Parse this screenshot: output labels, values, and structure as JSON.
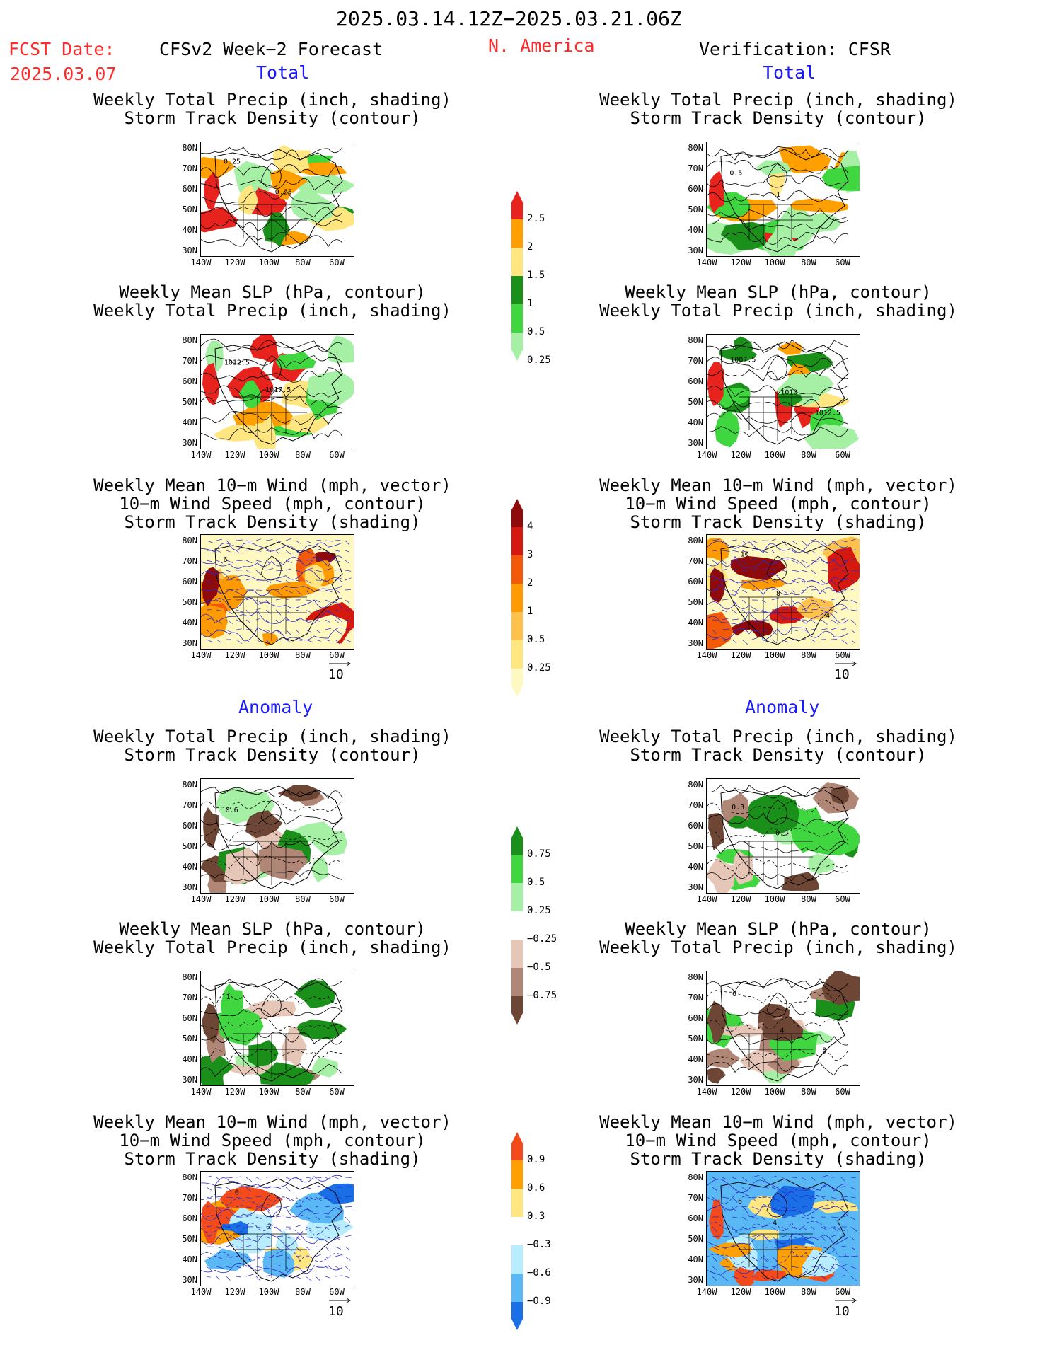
{
  "header": {
    "date_range": "2025.03.14.12Z−2025.03.21.06Z",
    "fcst_label": "FCST Date:",
    "fcst_date": "2025.03.07",
    "model": "CFSv2 Week−2 Forecast",
    "region": "N. America",
    "verification": "Verification: CFSR"
  },
  "sections": {
    "total": "Total",
    "anomaly": "Anomaly"
  },
  "titles": {
    "precip_storm": [
      "Weekly Total Precip (inch, shading)",
      "Storm Track Density (contour)"
    ],
    "slp_precip": [
      "Weekly Mean SLP (hPa, contour)",
      "Weekly Total Precip (inch, shading)"
    ],
    "wind_storm": [
      "Weekly Mean 10−m Wind (mph, vector)",
      "10−m Wind Speed (mph, contour)",
      "Storm Track Density (shading)"
    ]
  },
  "axes": {
    "lat_ticks": [
      "80N",
      "70N",
      "60N",
      "50N",
      "40N",
      "30N"
    ],
    "lon_ticks": [
      "140W",
      "120W",
      "100W",
      "80W",
      "60W"
    ]
  },
  "vector_ref": "10",
  "panels": [
    {
      "id": "fc-total-precip",
      "kind": "precip",
      "side": "forecast",
      "section": "total",
      "contour_labels": [
        "0.25",
        "0.25"
      ]
    },
    {
      "id": "ve-total-precip",
      "kind": "precip",
      "side": "verification",
      "section": "total",
      "contour_labels": [
        "0.5",
        "1"
      ]
    },
    {
      "id": "fc-total-slp",
      "kind": "precip",
      "side": "forecast",
      "section": "total",
      "contour_labels": [
        "1012.5",
        "1017.5"
      ]
    },
    {
      "id": "ve-total-slp",
      "kind": "precip",
      "side": "verification",
      "section": "total",
      "contour_labels": [
        "1007.5",
        "1010",
        "1012.5"
      ]
    },
    {
      "id": "fc-total-wind",
      "kind": "storm",
      "side": "forecast",
      "section": "total",
      "contour_labels": [
        "6"
      ]
    },
    {
      "id": "ve-total-wind",
      "kind": "storm",
      "side": "verification",
      "section": "total",
      "contour_labels": [
        "10",
        "8",
        "4"
      ]
    },
    {
      "id": "fc-anom-precip",
      "kind": "precip_anom",
      "side": "forecast",
      "section": "anomaly",
      "contour_labels": [
        "0.6"
      ]
    },
    {
      "id": "ve-anom-precip",
      "kind": "precip_anom",
      "side": "verification",
      "section": "anomaly",
      "contour_labels": [
        "0.3",
        "0.9"
      ]
    },
    {
      "id": "fc-anom-slp",
      "kind": "precip_anom",
      "side": "forecast",
      "section": "anomaly",
      "contour_labels": [
        "1"
      ]
    },
    {
      "id": "ve-anom-slp",
      "kind": "precip_anom",
      "side": "verification",
      "section": "anomaly",
      "contour_labels": [
        "6",
        "4",
        "8"
      ]
    },
    {
      "id": "fc-anom-wind",
      "kind": "storm_anom",
      "side": "forecast",
      "section": "anomaly",
      "contour_labels": [
        "0",
        "2"
      ]
    },
    {
      "id": "ve-anom-wind",
      "kind": "storm_anom",
      "side": "verification",
      "section": "anomaly",
      "contour_labels": [
        "6",
        "4"
      ]
    }
  ],
  "colorbars": {
    "precip_total": {
      "labels": [
        "2.5",
        "2",
        "1.5",
        "1",
        "0.5",
        "0.25"
      ],
      "colors": [
        "#e8231d",
        "#ff9f00",
        "#ffe680",
        "#1a8f1a",
        "#3fd63f",
        "#a6f0a6"
      ]
    },
    "storm_total": {
      "labels": [
        "4",
        "3",
        "2",
        "1",
        "0.5",
        "0.25"
      ],
      "colors": [
        "#8f0a0a",
        "#d6190f",
        "#f25a0a",
        "#ff9a00",
        "#ffc24d",
        "#ffe680",
        "#fff8c0"
      ]
    },
    "precip_anom": {
      "labels": [
        "0.75",
        "0.5",
        "0.25",
        "−0.25",
        "−0.5",
        "−0.75"
      ],
      "colors": [
        "#1a8f1a",
        "#3fd63f",
        "#a6f0a6",
        "#ffffff",
        "#e6c6b6",
        "#b08676",
        "#6e4636"
      ]
    },
    "storm_anom": {
      "labels": [
        "0.9",
        "0.6",
        "0.3",
        "−0.3",
        "−0.6",
        "−0.9"
      ],
      "colors": [
        "#f24a1a",
        "#ff9f00",
        "#ffe680",
        "#ffffff",
        "#b8ecff",
        "#5ab8f5",
        "#1a6ee6"
      ]
    }
  }
}
